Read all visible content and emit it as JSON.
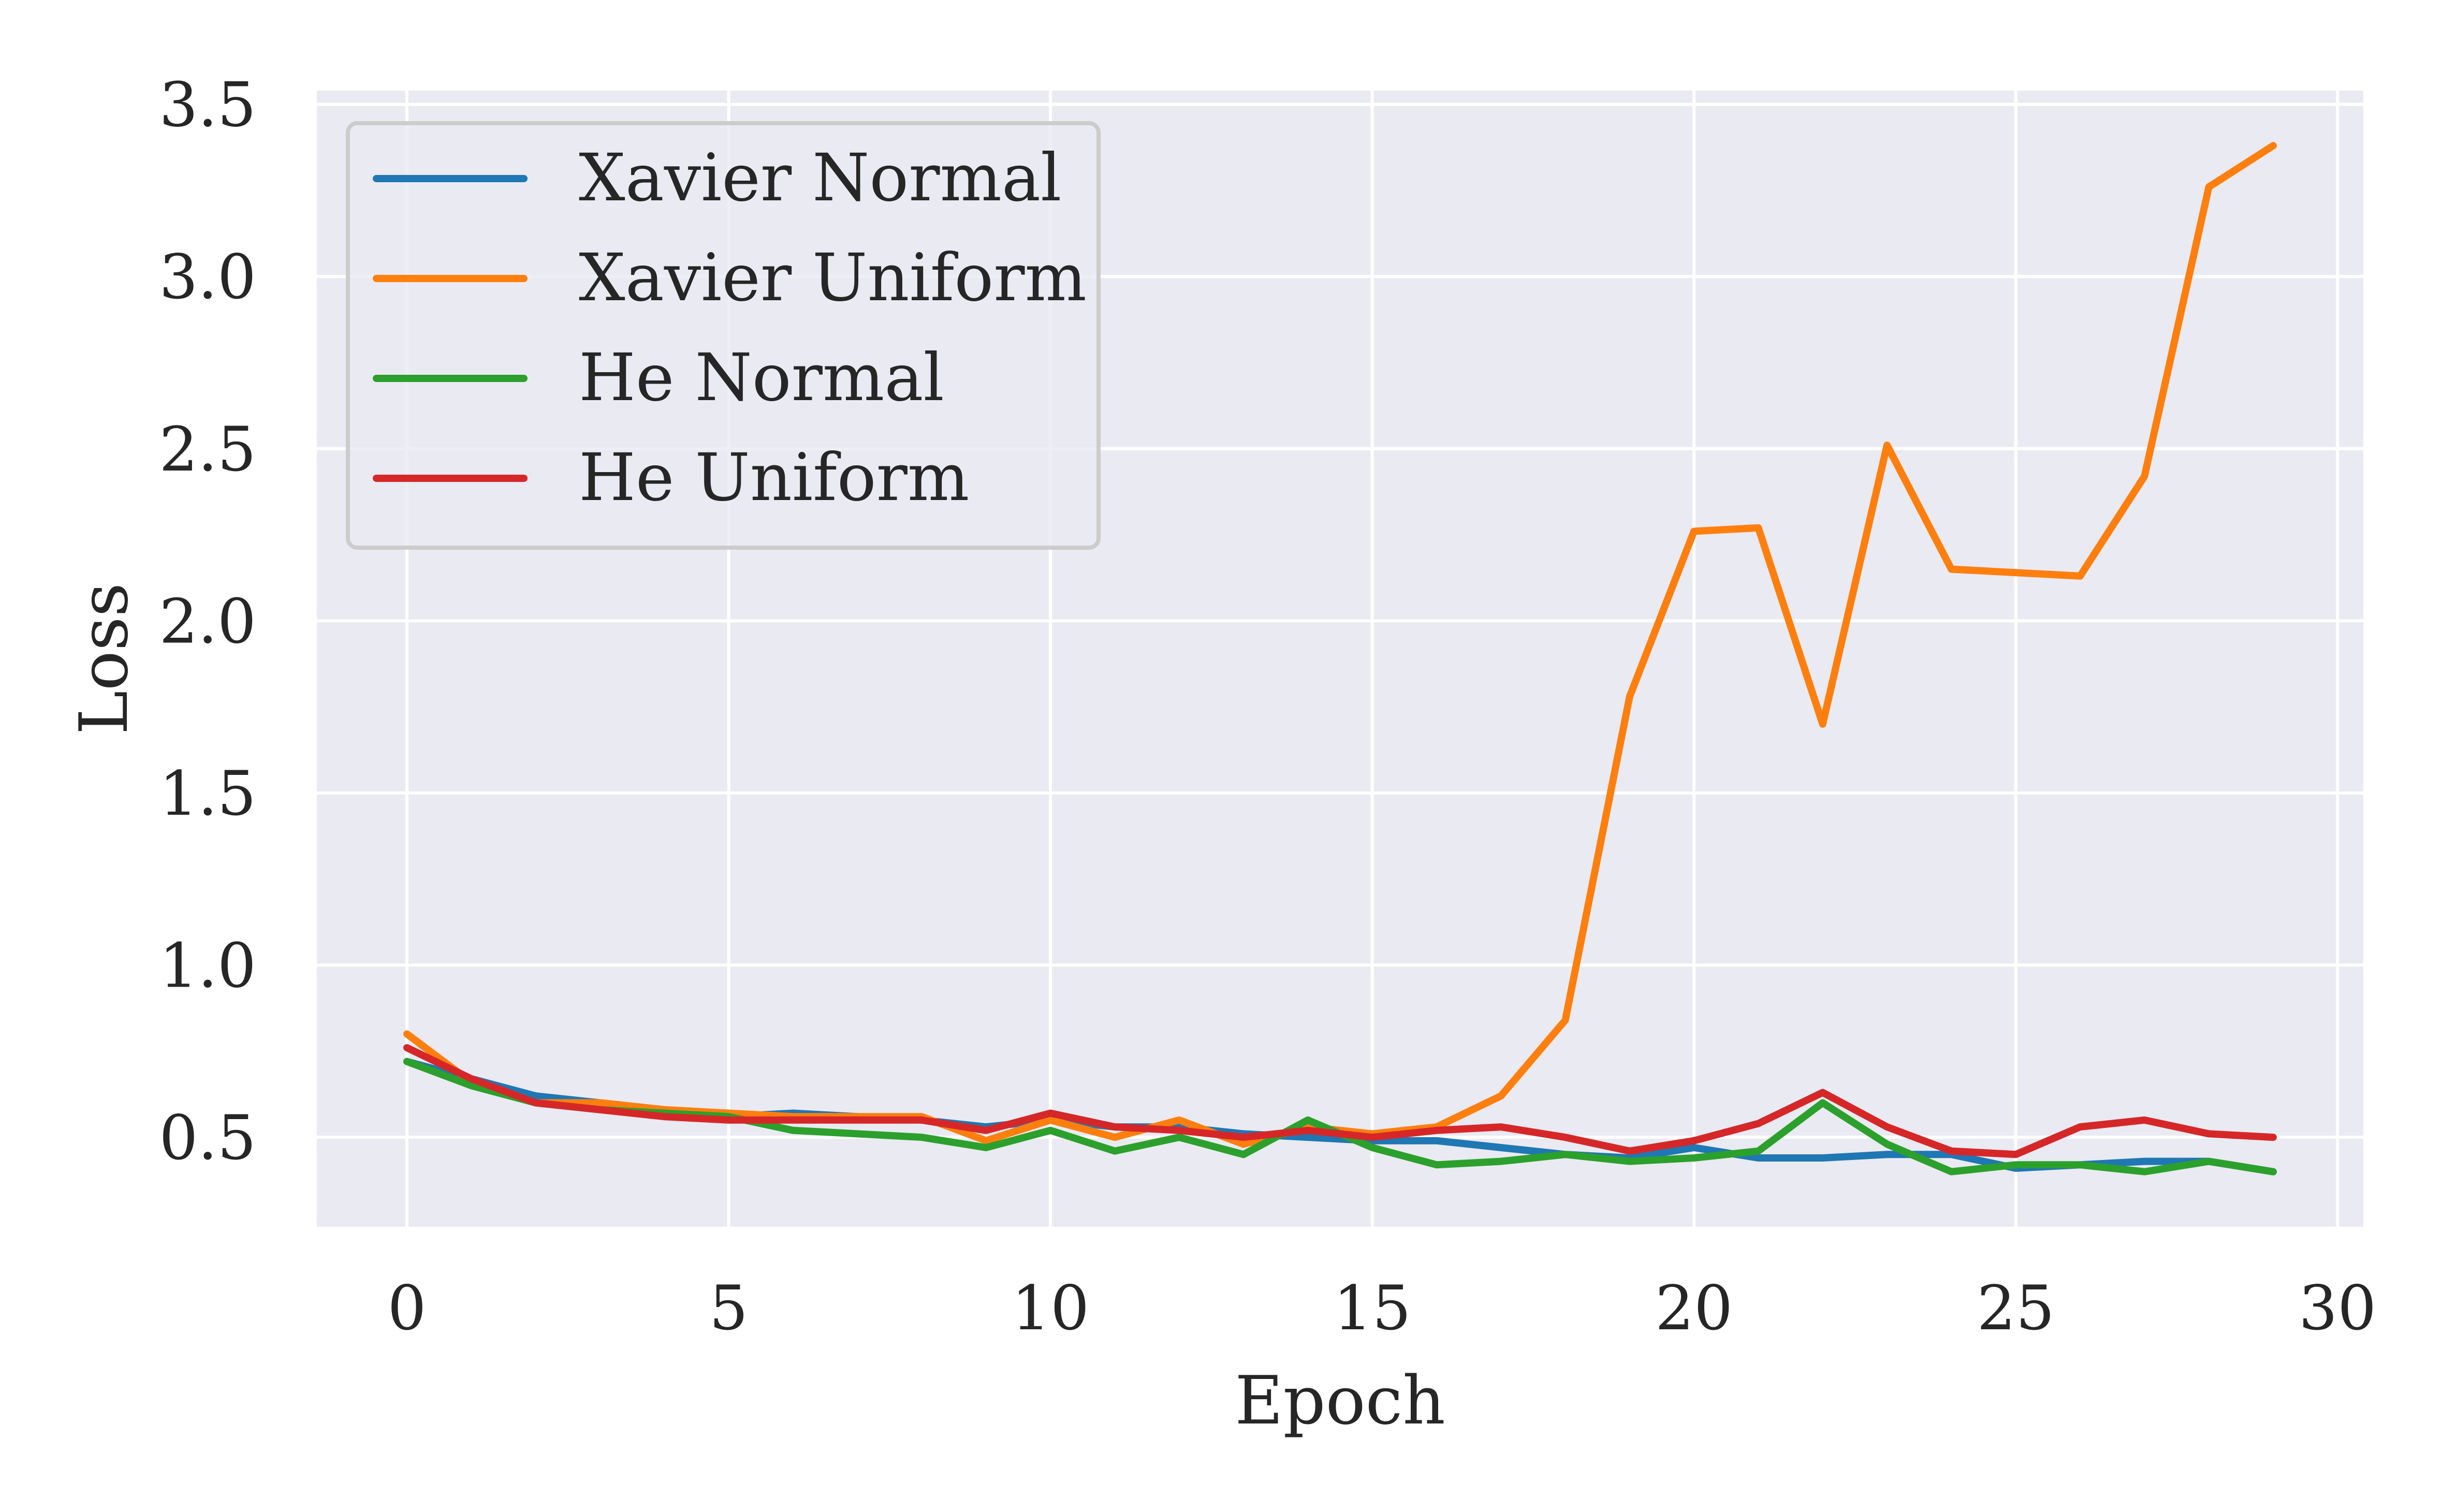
{
  "chart_data": {
    "type": "line",
    "xlabel": "Epoch",
    "ylabel": "Loss",
    "xlim": [
      -1.4,
      30.4
    ],
    "ylim": [
      0.24,
      3.54
    ],
    "xticks": [
      0,
      5,
      10,
      15,
      20,
      25,
      30
    ],
    "yticks": [
      0.5,
      1.0,
      1.5,
      2.0,
      2.5,
      3.0,
      3.5
    ],
    "xtick_labels": [
      "0",
      "5",
      "10",
      "15",
      "20",
      "25",
      "30"
    ],
    "ytick_labels": [
      "0.5",
      "1.0",
      "1.5",
      "2.0",
      "2.5",
      "3.0",
      "3.5"
    ],
    "grid": true,
    "legend_position": "top-left",
    "background": "#eaeaf2",
    "x": [
      0,
      1,
      2,
      3,
      4,
      5,
      6,
      7,
      8,
      9,
      10,
      11,
      12,
      13,
      14,
      15,
      16,
      17,
      18,
      19,
      20,
      21,
      22,
      23,
      24,
      25,
      26,
      27,
      28,
      29
    ],
    "series": [
      {
        "name": "Xavier Normal",
        "color": "#1f77b4",
        "values": [
          0.72,
          0.67,
          0.62,
          0.6,
          0.58,
          0.56,
          0.57,
          0.56,
          0.55,
          0.53,
          0.55,
          0.53,
          0.53,
          0.51,
          0.5,
          0.49,
          0.49,
          0.47,
          0.45,
          0.44,
          0.47,
          0.44,
          0.44,
          0.45,
          0.45,
          0.41,
          0.42,
          0.43,
          0.43,
          0.4
        ]
      },
      {
        "name": "Xavier Uniform",
        "color": "#ff7f0e",
        "values": [
          0.8,
          0.66,
          0.6,
          0.6,
          0.58,
          0.57,
          0.56,
          0.56,
          0.56,
          0.49,
          0.55,
          0.5,
          0.55,
          0.48,
          0.53,
          0.51,
          0.53,
          0.62,
          0.84,
          1.78,
          2.26,
          2.27,
          1.7,
          2.51,
          2.15,
          2.14,
          2.13,
          2.42,
          3.26,
          3.38
        ]
      },
      {
        "name": "He Normal",
        "color": "#2ca02c",
        "values": [
          0.72,
          0.65,
          0.6,
          0.58,
          0.57,
          0.56,
          0.52,
          0.51,
          0.5,
          0.47,
          0.52,
          0.46,
          0.5,
          0.45,
          0.55,
          0.47,
          0.42,
          0.43,
          0.45,
          0.43,
          0.44,
          0.46,
          0.6,
          0.48,
          0.4,
          0.42,
          0.42,
          0.4,
          0.43,
          0.4
        ]
      },
      {
        "name": "He Uniform",
        "color": "#d62728",
        "values": [
          0.76,
          0.67,
          0.6,
          0.58,
          0.56,
          0.55,
          0.55,
          0.55,
          0.55,
          0.52,
          0.57,
          0.53,
          0.52,
          0.5,
          0.52,
          0.5,
          0.52,
          0.53,
          0.5,
          0.46,
          0.49,
          0.54,
          0.63,
          0.53,
          0.46,
          0.45,
          0.53,
          0.55,
          0.51,
          0.5
        ]
      }
    ]
  }
}
